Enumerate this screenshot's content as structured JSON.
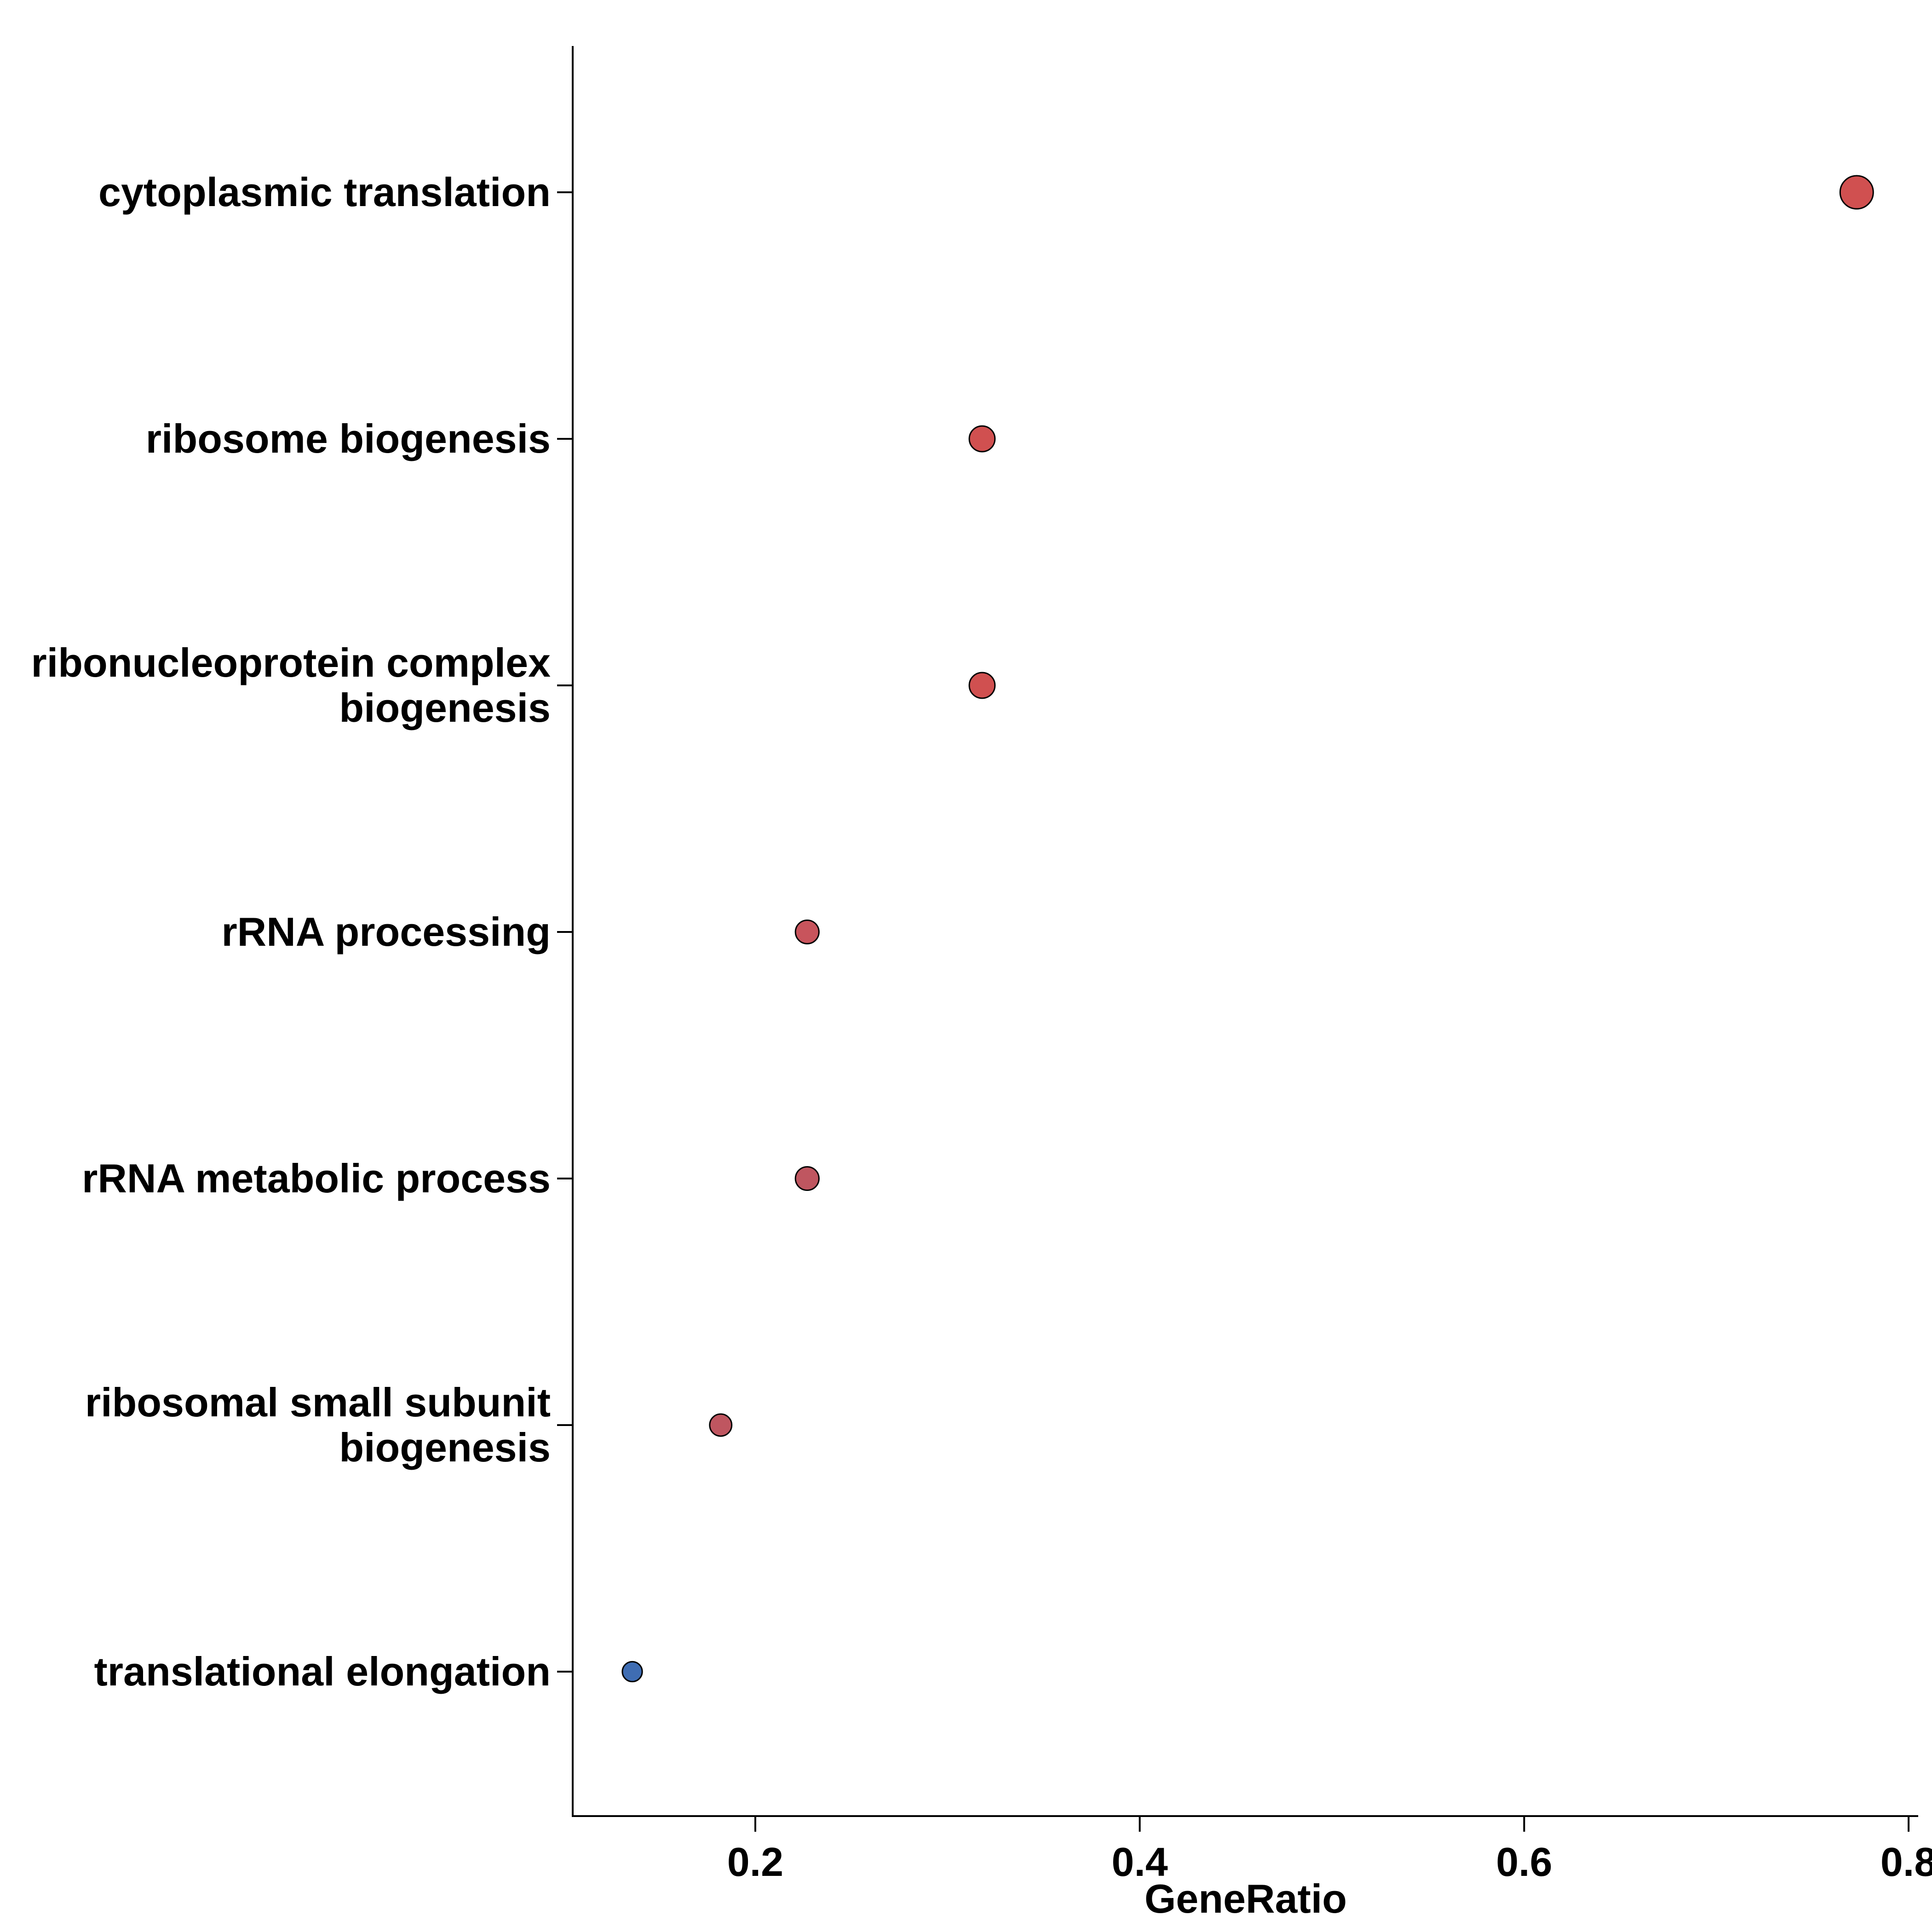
{
  "chart_data": {
    "type": "scatter",
    "xlabel": "GeneRatio",
    "ylabel": "",
    "title": "",
    "xlim": [
      0.105,
      0.805
    ],
    "xticks": [
      0.2,
      0.4,
      0.6,
      0.8
    ],
    "xtick_labels": [
      "0.2",
      "0.4",
      "0.6",
      "0.8"
    ],
    "grid": false,
    "categories": [
      {
        "lines": [
          "cytoplasmic translation"
        ],
        "x": 0.773,
        "color": "#D05050",
        "size_rank": 1.0
      },
      {
        "lines": [
          "ribosome biogenesis"
        ],
        "x": 0.318,
        "color": "#D05050",
        "size_rank": 0.55
      },
      {
        "lines": [
          "ribonucleoprotein complex",
          "biogenesis"
        ],
        "x": 0.318,
        "color": "#D05050",
        "size_rank": 0.55
      },
      {
        "lines": [
          "rRNA processing"
        ],
        "x": 0.227,
        "color": "#C8545C",
        "size_rank": 0.42
      },
      {
        "lines": [
          "rRNA metabolic process"
        ],
        "x": 0.227,
        "color": "#BF5660",
        "size_rank": 0.42
      },
      {
        "lines": [
          "ribosomal small subunit",
          "biogenesis"
        ],
        "x": 0.182,
        "color": "#BF5660",
        "size_rank": 0.33
      },
      {
        "lines": [
          "translational elongation"
        ],
        "x": 0.136,
        "color": "#3F6DB3",
        "size_rank": 0.2
      }
    ]
  }
}
